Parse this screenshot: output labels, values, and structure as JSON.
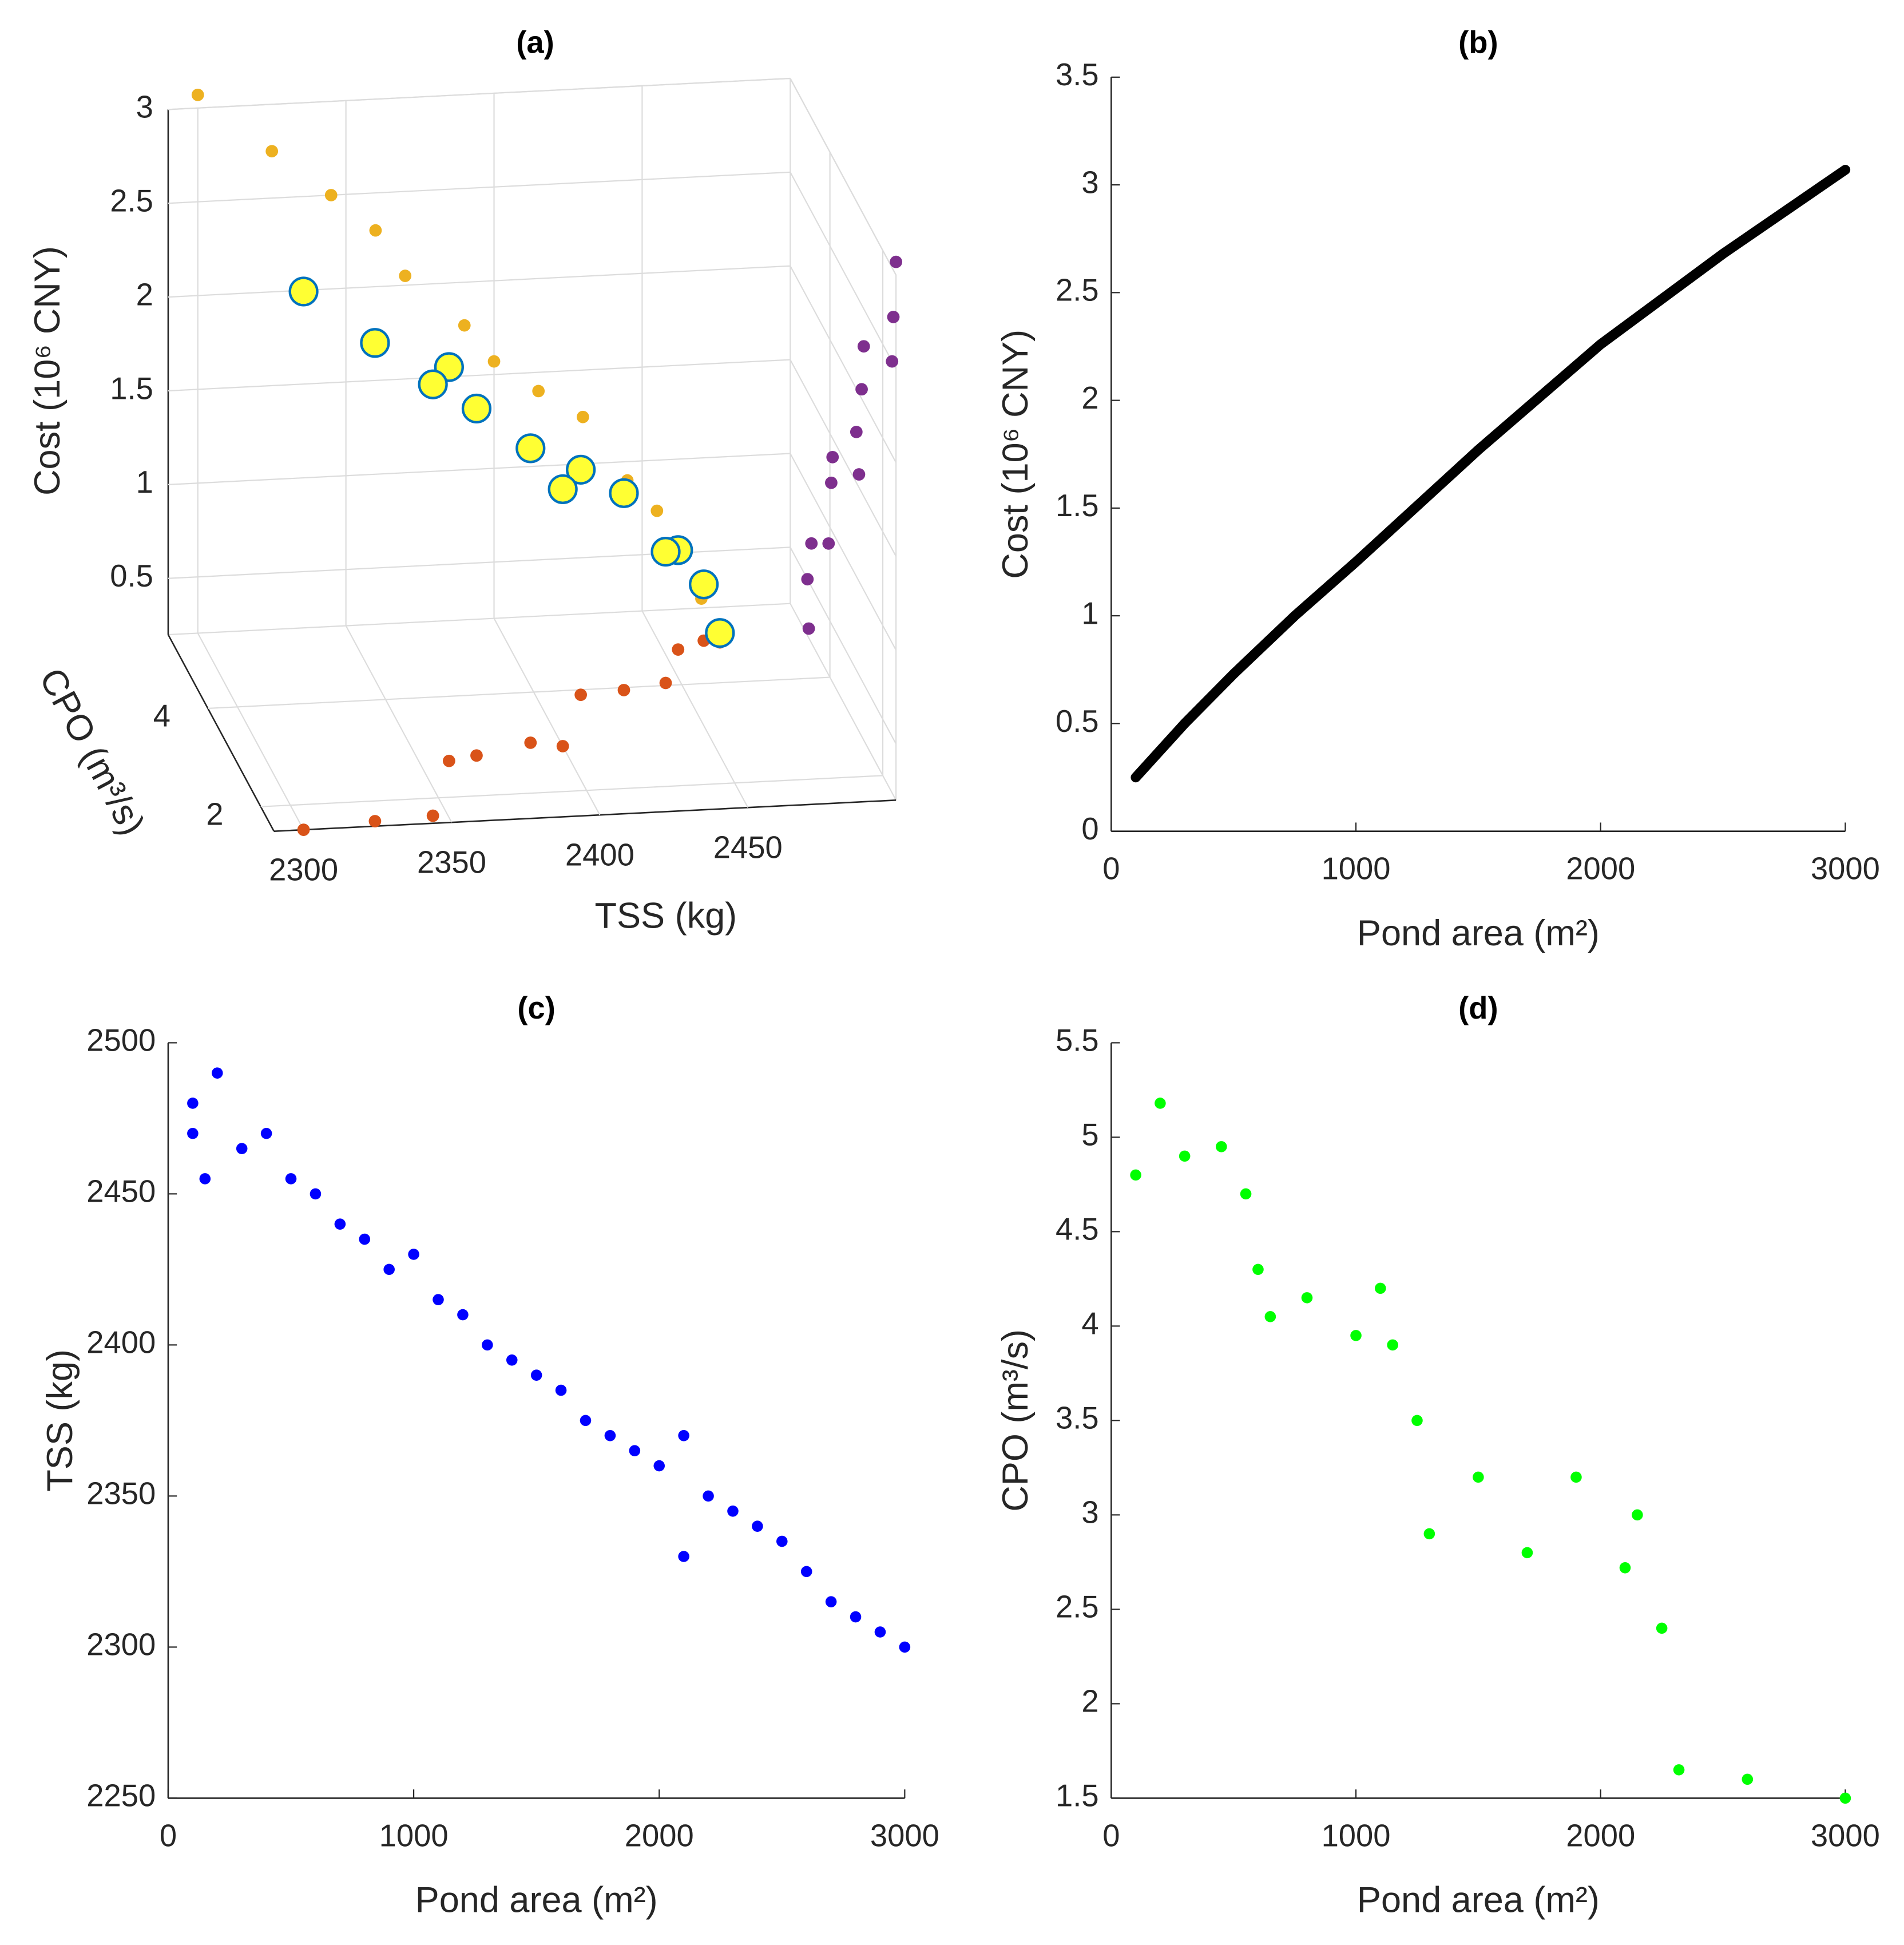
{
  "chart_data": [
    {
      "type": "scatter3d",
      "title": "(a)",
      "xlabel": "TSS (kg)",
      "ylabel": "CPO (m³/s)",
      "zlabel": "Cost (10⁶ CNY)",
      "xlim": [
        2290,
        2500
      ],
      "xticks": [
        2300,
        2350,
        2400,
        2450
      ],
      "ylim": [
        1.5,
        5.5
      ],
      "yticks": [
        2,
        4
      ],
      "zlim": [
        0.2,
        3
      ],
      "zticks": [
        0.5,
        1,
        1.5,
        2,
        2.5,
        3
      ],
      "color": "#ffff33",
      "edge_color": "#0072bd",
      "projection_colors": {
        "xz": "#edb120",
        "xy": "#d95319",
        "yz": "#7e2f8e"
      },
      "grid": true,
      "x": [
        2470,
        2465,
        2455,
        2445,
        2430,
        2415,
        2400,
        2390,
        2370,
        2360,
        2345,
        2325,
        2300
      ],
      "y": [
        4.8,
        4.85,
        4.7,
        4.05,
        3.95,
        3.9,
        2.9,
        3.0,
        2.8,
        2.72,
        1.65,
        1.6,
        1.5
      ],
      "z": [
        0.25,
        0.5,
        0.73,
        0.9,
        1.25,
        1.4,
        1.57,
        1.77,
        2.05,
        2.3,
        2.5,
        2.75,
        3.07
      ]
    },
    {
      "type": "line",
      "title": "(b)",
      "xlabel": "Pond area (m²)",
      "ylabel": "Cost (10⁶ CNY)",
      "xlim": [
        0,
        3000
      ],
      "xticks": [
        0,
        1000,
        2000,
        3000
      ],
      "ylim": [
        0,
        3.5
      ],
      "yticks": [
        0,
        0.5,
        1,
        1.5,
        2,
        2.5,
        3,
        3.5
      ],
      "color": "#000000",
      "x": [
        100,
        300,
        500,
        750,
        1000,
        1500,
        2000,
        2500,
        3000
      ],
      "values": [
        0.25,
        0.5,
        0.73,
        1.0,
        1.25,
        1.77,
        2.26,
        2.68,
        3.07
      ]
    },
    {
      "type": "scatter",
      "title": "(c)",
      "xlabel": "Pond area (m²)",
      "ylabel": "TSS (kg)",
      "xlim": [
        0,
        3000
      ],
      "xticks": [
        0,
        1000,
        2000,
        3000
      ],
      "ylim": [
        2250,
        2500
      ],
      "yticks": [
        2250,
        2300,
        2350,
        2400,
        2450,
        2500
      ],
      "color": "#0000ff",
      "x": [
        100,
        100,
        150,
        200,
        300,
        400,
        500,
        600,
        700,
        800,
        900,
        1000,
        1100,
        1200,
        1300,
        1400,
        1500,
        1600,
        1700,
        1800,
        1900,
        2000,
        2100,
        2200,
        2100,
        2300,
        2400,
        2500,
        2600,
        2700,
        2800,
        2900,
        3000
      ],
      "values": [
        2470,
        2480,
        2455,
        2490,
        2465,
        2470,
        2455,
        2450,
        2440,
        2435,
        2425,
        2430,
        2415,
        2410,
        2400,
        2395,
        2390,
        2385,
        2375,
        2370,
        2365,
        2360,
        2370,
        2350,
        2330,
        2345,
        2340,
        2335,
        2325,
        2315,
        2310,
        2305,
        2300
      ]
    },
    {
      "type": "scatter",
      "title": "(d)",
      "xlabel": "Pond area (m²)",
      "ylabel": "CPO (m³/s)",
      "xlim": [
        0,
        3000
      ],
      "xticks": [
        0,
        1000,
        2000,
        3000
      ],
      "ylim": [
        1.5,
        5.5
      ],
      "yticks": [
        1.5,
        2,
        2.5,
        3,
        3.5,
        4,
        4.5,
        5,
        5.5
      ],
      "color": "#00ff00",
      "x": [
        100,
        200,
        300,
        450,
        550,
        600,
        650,
        800,
        1000,
        1100,
        1150,
        1250,
        1300,
        1500,
        1700,
        1900,
        2100,
        2150,
        2250,
        2320,
        2600,
        3000
      ],
      "values": [
        4.8,
        5.18,
        4.9,
        4.95,
        4.7,
        4.3,
        4.05,
        4.15,
        3.95,
        4.2,
        3.9,
        3.5,
        2.9,
        3.2,
        2.8,
        3.2,
        2.72,
        3.0,
        2.4,
        1.65,
        1.6,
        1.5
      ]
    }
  ]
}
